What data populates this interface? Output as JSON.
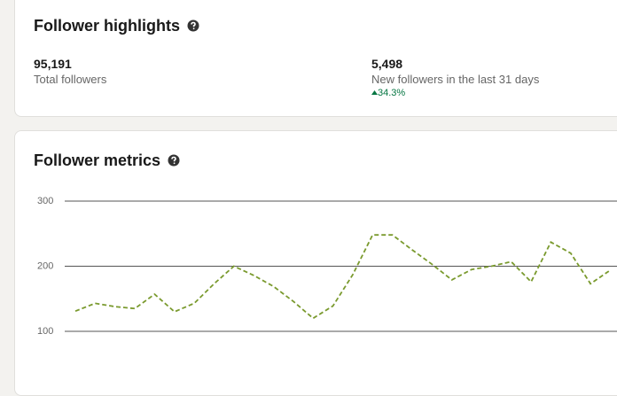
{
  "highlights": {
    "title": "Follower highlights",
    "stats": [
      {
        "value": "95,191",
        "label": "Total followers"
      },
      {
        "value": "5,498",
        "label": "New followers in the last 31 days",
        "change": "34.3%"
      }
    ]
  },
  "chart_data": {
    "type": "line",
    "title": "Follower metrics",
    "series": [
      {
        "color": "#7a9a2e",
        "values": [
          131,
          143,
          138,
          135,
          157,
          130,
          143,
          173,
          200,
          186,
          169,
          146,
          120,
          139,
          187,
          248,
          248,
          225,
          203,
          179,
          195,
          200,
          207,
          176,
          237,
          220,
          173,
          194
        ]
      }
    ],
    "ylim": [
      100,
      300
    ],
    "yticks": [
      100,
      200,
      300
    ],
    "grid": true
  }
}
